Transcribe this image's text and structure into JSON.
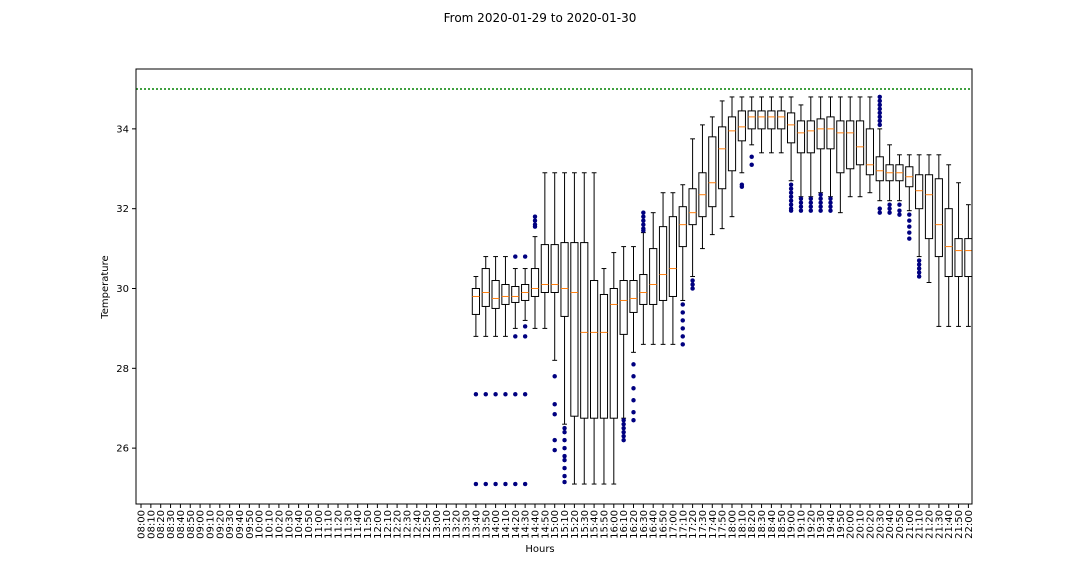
{
  "chart_data": {
    "type": "boxplot",
    "title": "From 2020-01-29 to 2020-01-30",
    "xlabel": "Hours",
    "ylabel": "Temperature",
    "ylim": [
      24.6,
      35.5
    ],
    "yticks": [
      26,
      28,
      30,
      32,
      34
    ],
    "threshold": 35,
    "colors": {
      "box": "#000000",
      "median": "#ff7f0e",
      "outlier": "#000080",
      "threshold": "#008000"
    },
    "categories": [
      "08:00",
      "08:10",
      "08:20",
      "08:30",
      "08:40",
      "08:50",
      "09:00",
      "09:10",
      "09:20",
      "09:30",
      "09:40",
      "09:50",
      "10:00",
      "10:10",
      "10:20",
      "10:30",
      "10:40",
      "10:50",
      "11:00",
      "11:10",
      "11:20",
      "11:30",
      "11:40",
      "11:50",
      "12:00",
      "12:10",
      "12:20",
      "12:30",
      "12:40",
      "12:50",
      "13:00",
      "13:10",
      "13:20",
      "13:30",
      "13:40",
      "13:50",
      "14:00",
      "14:10",
      "14:20",
      "14:30",
      "14:40",
      "14:50",
      "15:00",
      "15:10",
      "15:20",
      "15:30",
      "15:40",
      "15:50",
      "16:00",
      "16:10",
      "16:20",
      "16:30",
      "16:40",
      "16:50",
      "17:00",
      "17:10",
      "17:20",
      "17:30",
      "17:40",
      "17:50",
      "18:00",
      "18:10",
      "18:20",
      "18:30",
      "18:40",
      "18:50",
      "19:00",
      "19:10",
      "19:20",
      "19:30",
      "19:40",
      "19:50",
      "20:00",
      "20:10",
      "20:20",
      "20:30",
      "20:40",
      "20:50",
      "21:00",
      "21:10",
      "21:20",
      "21:30",
      "21:40",
      "21:50",
      "22:00"
    ],
    "boxes": [
      {
        "time": "13:40",
        "whislo": 28.8,
        "q1": 29.35,
        "med": 29.8,
        "q3": 30.0,
        "whishi": 30.3,
        "fliers": [
          27.35,
          25.1
        ]
      },
      {
        "time": "13:50",
        "whislo": 28.8,
        "q1": 29.55,
        "med": 29.9,
        "q3": 30.5,
        "whishi": 30.8,
        "fliers": [
          27.35,
          25.1
        ]
      },
      {
        "time": "14:00",
        "whislo": 28.8,
        "q1": 29.5,
        "med": 29.75,
        "q3": 30.2,
        "whishi": 30.8,
        "fliers": [
          27.35,
          25.1
        ]
      },
      {
        "time": "14:10",
        "whislo": 28.8,
        "q1": 29.6,
        "med": 29.8,
        "q3": 30.1,
        "whishi": 30.8,
        "fliers": [
          27.35,
          25.1
        ]
      },
      {
        "time": "14:20",
        "whislo": 29.0,
        "q1": 29.65,
        "med": 29.8,
        "q3": 30.05,
        "whishi": 30.5,
        "fliers": [
          30.8,
          28.8,
          27.35,
          25.1
        ]
      },
      {
        "time": "14:30",
        "whislo": 29.2,
        "q1": 29.7,
        "med": 29.9,
        "q3": 30.1,
        "whishi": 30.5,
        "fliers": [
          30.8,
          29.05,
          28.8,
          27.35,
          25.1
        ]
      },
      {
        "time": "14:40",
        "whislo": 29.0,
        "q1": 29.8,
        "med": 30.0,
        "q3": 30.5,
        "whishi": 31.3,
        "fliers": [
          31.8,
          31.7,
          31.6,
          31.55
        ]
      },
      {
        "time": "14:50",
        "whislo": 29.0,
        "q1": 29.9,
        "med": 30.1,
        "q3": 31.1,
        "whishi": 32.9,
        "fliers": []
      },
      {
        "time": "15:00",
        "whislo": 28.2,
        "q1": 29.9,
        "med": 30.1,
        "q3": 31.1,
        "whishi": 32.9,
        "fliers": [
          27.8,
          27.1,
          26.85,
          26.2,
          25.95
        ]
      },
      {
        "time": "15:10",
        "whislo": 26.6,
        "q1": 29.3,
        "med": 30.0,
        "q3": 31.15,
        "whishi": 32.9,
        "fliers": [
          26.5,
          26.4,
          26.2,
          26.0,
          25.8,
          25.7,
          25.5,
          25.3,
          25.15
        ]
      },
      {
        "time": "15:20",
        "whislo": 25.1,
        "q1": 26.8,
        "med": 29.9,
        "q3": 31.15,
        "whishi": 32.9,
        "fliers": []
      },
      {
        "time": "15:30",
        "whislo": 25.1,
        "q1": 26.75,
        "med": 28.9,
        "q3": 31.15,
        "whishi": 32.9,
        "fliers": []
      },
      {
        "time": "15:40",
        "whislo": 25.1,
        "q1": 26.75,
        "med": 28.9,
        "q3": 30.2,
        "whishi": 32.9,
        "fliers": []
      },
      {
        "time": "15:50",
        "whislo": 25.1,
        "q1": 26.75,
        "med": 28.9,
        "q3": 29.85,
        "whishi": 30.5,
        "fliers": []
      },
      {
        "time": "16:00",
        "whislo": 25.1,
        "q1": 26.75,
        "med": 29.6,
        "q3": 30.0,
        "whishi": 30.9,
        "fliers": []
      },
      {
        "time": "16:10",
        "whislo": 26.75,
        "q1": 28.85,
        "med": 29.7,
        "q3": 30.2,
        "whishi": 31.05,
        "fliers": [
          26.7,
          26.6,
          26.5,
          26.4,
          26.3,
          26.2
        ]
      },
      {
        "time": "16:20",
        "whislo": 28.4,
        "q1": 29.4,
        "med": 29.75,
        "q3": 30.2,
        "whishi": 31.05,
        "fliers": [
          28.1,
          27.8,
          27.5,
          27.2,
          26.9,
          26.7
        ]
      },
      {
        "time": "16:30",
        "whislo": 28.6,
        "q1": 29.6,
        "med": 29.9,
        "q3": 30.35,
        "whishi": 31.4,
        "fliers": [
          31.9,
          31.8,
          31.7,
          31.6,
          31.5,
          31.45
        ]
      },
      {
        "time": "16:40",
        "whislo": 28.6,
        "q1": 29.6,
        "med": 30.1,
        "q3": 31.0,
        "whishi": 31.9,
        "fliers": []
      },
      {
        "time": "16:50",
        "whislo": 28.6,
        "q1": 29.7,
        "med": 30.35,
        "q3": 31.55,
        "whishi": 32.4,
        "fliers": []
      },
      {
        "time": "17:00",
        "whislo": 28.6,
        "q1": 29.8,
        "med": 30.5,
        "q3": 31.8,
        "whishi": 32.4,
        "fliers": []
      },
      {
        "time": "17:10",
        "whislo": 29.7,
        "q1": 31.05,
        "med": 31.6,
        "q3": 32.05,
        "whishi": 32.6,
        "fliers": [
          29.6,
          29.4,
          29.2,
          29.0,
          28.8,
          28.6
        ]
      },
      {
        "time": "17:20",
        "whislo": 30.3,
        "q1": 31.6,
        "med": 31.9,
        "q3": 32.5,
        "whishi": 33.75,
        "fliers": [
          30.2,
          30.1,
          30.0
        ]
      },
      {
        "time": "17:30",
        "whislo": 31.0,
        "q1": 31.8,
        "med": 32.35,
        "q3": 32.9,
        "whishi": 34.1,
        "fliers": []
      },
      {
        "time": "17:40",
        "whislo": 31.35,
        "q1": 32.05,
        "med": 32.65,
        "q3": 33.8,
        "whishi": 34.3,
        "fliers": []
      },
      {
        "time": "17:50",
        "whislo": 31.5,
        "q1": 32.5,
        "med": 33.5,
        "q3": 34.05,
        "whishi": 34.7,
        "fliers": []
      },
      {
        "time": "18:00",
        "whislo": 31.8,
        "q1": 32.95,
        "med": 33.95,
        "q3": 34.3,
        "whishi": 34.8,
        "fliers": []
      },
      {
        "time": "18:10",
        "whislo": 32.9,
        "q1": 33.7,
        "med": 34.05,
        "q3": 34.45,
        "whishi": 34.8,
        "fliers": [
          32.6,
          32.55
        ]
      },
      {
        "time": "18:20",
        "whislo": 33.6,
        "q1": 34.0,
        "med": 34.3,
        "q3": 34.45,
        "whishi": 34.8,
        "fliers": [
          33.3,
          33.1
        ]
      },
      {
        "time": "18:30",
        "whislo": 33.4,
        "q1": 34.0,
        "med": 34.3,
        "q3": 34.45,
        "whishi": 34.8,
        "fliers": []
      },
      {
        "time": "18:40",
        "whislo": 33.4,
        "q1": 34.0,
        "med": 34.3,
        "q3": 34.45,
        "whishi": 34.8,
        "fliers": []
      },
      {
        "time": "18:50",
        "whislo": 33.4,
        "q1": 34.0,
        "med": 34.3,
        "q3": 34.45,
        "whishi": 34.8,
        "fliers": []
      },
      {
        "time": "19:00",
        "whislo": 32.7,
        "q1": 33.65,
        "med": 34.1,
        "q3": 34.4,
        "whishi": 34.8,
        "fliers": [
          32.6,
          32.5,
          32.4,
          32.3,
          32.2,
          32.1,
          32.0,
          31.95
        ]
      },
      {
        "time": "19:10",
        "whislo": 32.3,
        "q1": 33.4,
        "med": 33.9,
        "q3": 34.2,
        "whishi": 34.6,
        "fliers": [
          32.25,
          32.15,
          32.05,
          31.95
        ]
      },
      {
        "time": "19:20",
        "whislo": 32.3,
        "q1": 33.4,
        "med": 33.95,
        "q3": 34.2,
        "whishi": 34.8,
        "fliers": [
          32.25,
          32.15,
          32.05,
          31.95
        ]
      },
      {
        "time": "19:30",
        "whislo": 32.4,
        "q1": 33.5,
        "med": 34.0,
        "q3": 34.25,
        "whishi": 34.8,
        "fliers": [
          32.35,
          32.25,
          32.15,
          32.05,
          31.95
        ]
      },
      {
        "time": "19:40",
        "whislo": 32.3,
        "q1": 33.5,
        "med": 34.0,
        "q3": 34.3,
        "whishi": 34.8,
        "fliers": [
          32.25,
          32.15,
          32.05,
          31.95
        ]
      },
      {
        "time": "19:50",
        "whislo": 31.9,
        "q1": 32.9,
        "med": 33.9,
        "q3": 34.2,
        "whishi": 34.8,
        "fliers": []
      },
      {
        "time": "20:00",
        "whislo": 32.3,
        "q1": 33.0,
        "med": 33.9,
        "q3": 34.2,
        "whishi": 34.8,
        "fliers": []
      },
      {
        "time": "20:10",
        "whislo": 32.3,
        "q1": 33.1,
        "med": 33.55,
        "q3": 34.2,
        "whishi": 34.8,
        "fliers": []
      },
      {
        "time": "20:20",
        "whislo": 32.4,
        "q1": 32.85,
        "med": 33.1,
        "q3": 34.0,
        "whishi": 34.8,
        "fliers": []
      },
      {
        "time": "20:30",
        "whislo": 32.2,
        "q1": 32.7,
        "med": 32.95,
        "q3": 33.3,
        "whishi": 34.0,
        "fliers": [
          34.8,
          34.7,
          34.6,
          34.5,
          34.4,
          34.3,
          34.2,
          34.1,
          32.0,
          31.9
        ]
      },
      {
        "time": "20:40",
        "whislo": 32.2,
        "q1": 32.7,
        "med": 32.9,
        "q3": 33.1,
        "whishi": 33.6,
        "fliers": [
          32.1,
          32.0,
          31.9
        ]
      },
      {
        "time": "20:50",
        "whislo": 32.2,
        "q1": 32.7,
        "med": 32.9,
        "q3": 33.1,
        "whishi": 33.35,
        "fliers": [
          32.1,
          31.95,
          31.85
        ]
      },
      {
        "time": "21:00",
        "whislo": 31.95,
        "q1": 32.55,
        "med": 32.8,
        "q3": 33.05,
        "whishi": 33.35,
        "fliers": [
          31.85,
          31.7,
          31.55,
          31.4,
          31.25
        ]
      },
      {
        "time": "21:10",
        "whislo": 30.8,
        "q1": 32.0,
        "med": 32.45,
        "q3": 32.85,
        "whishi": 33.35,
        "fliers": [
          30.7,
          30.6,
          30.5,
          30.4,
          30.3
        ]
      },
      {
        "time": "21:20",
        "whislo": 30.15,
        "q1": 31.25,
        "med": 32.35,
        "q3": 32.85,
        "whishi": 33.35,
        "fliers": []
      },
      {
        "time": "21:30",
        "whislo": 29.05,
        "q1": 30.8,
        "med": 31.6,
        "q3": 32.75,
        "whishi": 33.35,
        "fliers": []
      },
      {
        "time": "21:40",
        "whislo": 29.05,
        "q1": 30.3,
        "med": 31.05,
        "q3": 32.0,
        "whishi": 33.1,
        "fliers": []
      },
      {
        "time": "21:50",
        "whislo": 29.05,
        "q1": 30.3,
        "med": 30.95,
        "q3": 31.25,
        "whishi": 32.65,
        "fliers": []
      },
      {
        "time": "22:00",
        "whislo": 29.05,
        "q1": 30.3,
        "med": 30.95,
        "q3": 31.25,
        "whishi": 32.1,
        "fliers": []
      }
    ]
  }
}
